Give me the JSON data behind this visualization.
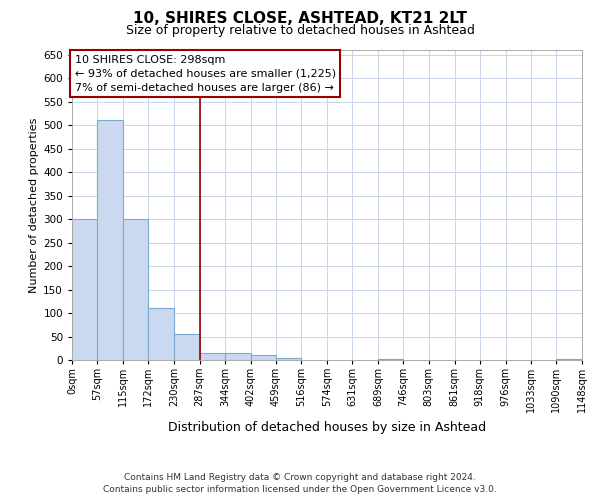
{
  "title1": "10, SHIRES CLOSE, ASHTEAD, KT21 2LT",
  "title2": "Size of property relative to detached houses in Ashtead",
  "xlabel": "Distribution of detached houses by size in Ashtead",
  "ylabel": "Number of detached properties",
  "footer1": "Contains HM Land Registry data © Crown copyright and database right 2024.",
  "footer2": "Contains public sector information licensed under the Open Government Licence v3.0.",
  "annotation_line1": "10 SHIRES CLOSE: 298sqm",
  "annotation_line2": "← 93% of detached houses are smaller (1,225)",
  "annotation_line3": "7% of semi-detached houses are larger (86) →",
  "bar_edges": [
    0,
    57,
    115,
    172,
    230,
    287,
    344,
    402,
    459,
    516,
    574,
    631,
    689,
    746,
    803,
    861,
    918,
    976,
    1033,
    1090,
    1148
  ],
  "bar_heights": [
    300,
    510,
    300,
    110,
    55,
    15,
    15,
    10,
    5,
    0,
    0,
    0,
    2,
    0,
    0,
    0,
    0,
    0,
    0,
    2
  ],
  "bar_color": "#cad9ef",
  "bar_edge_color": "#7aabcf",
  "property_line_x": 287,
  "property_line_color": "#9b0000",
  "ylim": [
    0,
    660
  ],
  "xlim": [
    0,
    1148
  ],
  "yticks": [
    0,
    50,
    100,
    150,
    200,
    250,
    300,
    350,
    400,
    450,
    500,
    550,
    600,
    650
  ],
  "annotation_box_color": "#ffffff",
  "annotation_box_edge_color": "#9b0000",
  "grid_color": "#c8d4e8",
  "bg_color": "#ffffff",
  "plot_bg_color": "#ffffff",
  "title1_fontsize": 11,
  "title2_fontsize": 9,
  "xlabel_fontsize": 9,
  "ylabel_fontsize": 8,
  "tick_fontsize": 7.5,
  "xtick_fontsize": 7,
  "annotation_fontsize": 8,
  "footer_fontsize": 6.5
}
